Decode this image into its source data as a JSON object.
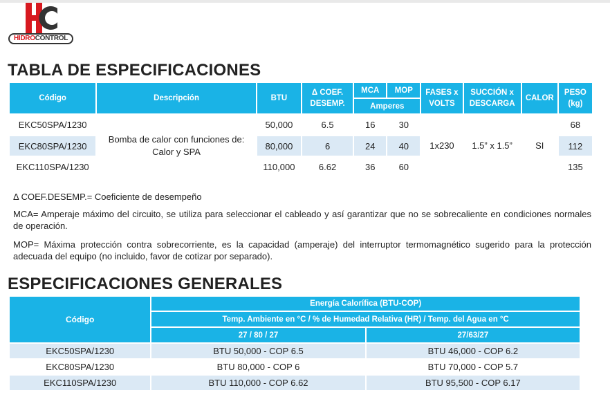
{
  "logo": {
    "brand_red": "HIDRO",
    "brand_dark": "CONTROL",
    "colors": {
      "red": "#d71920",
      "dark": "#333333"
    }
  },
  "spec": {
    "title": "TABLA DE ESPECIFICACIONES",
    "headers": {
      "codigo": "Código",
      "descripcion": "Descripción",
      "btu": "BTU",
      "coef_1": "Δ COEF.",
      "coef_2": "DESEMP.",
      "mca": "MCA",
      "mop": "MOP",
      "amperes": "Amperes",
      "fases_1": "FASES x",
      "fases_2": "VOLTS",
      "succion_1": "SUCCIÓN x",
      "succion_2": "DESCARGA",
      "calor": "CALOR",
      "peso_1": "PESO",
      "peso_2": "(kg)"
    },
    "desc_1": "Bomba de calor con funciones de:",
    "desc_2": "Calor y SPA",
    "fases": "1x230",
    "succion": "1.5” x 1.5”",
    "calor": "SI",
    "rows": [
      {
        "codigo": "EKC50SPA/1230",
        "btu": "50,000",
        "coef": "6.5",
        "mca": "16",
        "mop": "30",
        "peso": "68"
      },
      {
        "codigo": "EKC80SPA/1230",
        "btu": "80,000",
        "coef": "6",
        "mca": "24",
        "mop": "40",
        "peso": "112"
      },
      {
        "codigo": "EKC110SPA/1230",
        "btu": "110,000",
        "coef": "6.62",
        "mca": "36",
        "mop": "60",
        "peso": "135"
      }
    ]
  },
  "notes": {
    "coef": "Δ COEF.DESEMP.= Coeficiente de desempeño",
    "mca": "MCA= Amperaje máximo del circuito, se utiliza para seleccionar el cableado y así garantizar que no se sobrecaliente en condiciones normales de operación.",
    "mop": "MOP= Máxima protección contra sobrecorriente, es la capacidad (amperaje) del interruptor termomagnético sugerido para la protección adecuada del equipo (no incluido, favor de cotizar por separado)."
  },
  "general": {
    "title": "ESPECIFICACIONES GENERALES",
    "headers": {
      "codigo": "Código",
      "energia": "Energía Calorífica (BTU-COP)",
      "temp": "Temp. Ambiente en °C / % de Humedad Relativa (HR) / Temp. del Agua en °C",
      "cond1": "27 / 80 / 27",
      "cond2": "27/63/27"
    },
    "rows": [
      {
        "codigo": "EKC50SPA/1230",
        "c1": "BTU 50,000 - COP 6.5",
        "c2": "BTU 46,000 - COP 6.2"
      },
      {
        "codigo": "EKC80SPA/1230",
        "c1": "BTU 80,000 - COP 6",
        "c2": "BTU 70,000 - COP 5.7"
      },
      {
        "codigo": "EKC110SPA/1230",
        "c1": "BTU 110,000 - COP 6.62",
        "c2": "BTU 95,500 - COP 6.17"
      }
    ]
  },
  "colors": {
    "header": "#1ab3e6",
    "alt_row": "#dbe9f5",
    "text": "#222222"
  }
}
